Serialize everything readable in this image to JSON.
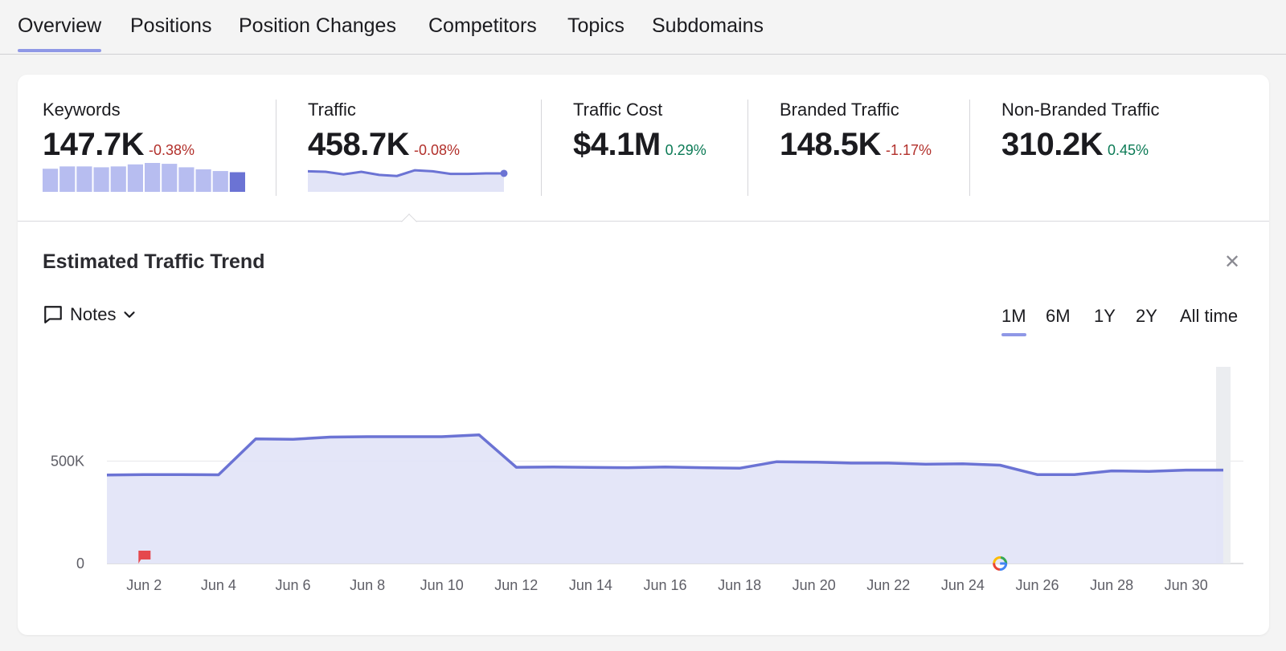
{
  "tabs": [
    {
      "label": "Overview",
      "active": true
    },
    {
      "label": "Positions"
    },
    {
      "label": "Position Changes"
    },
    {
      "label": "Competitors"
    },
    {
      "label": "Topics"
    },
    {
      "label": "Subdomains"
    }
  ],
  "metrics": {
    "keywords": {
      "label": "Keywords",
      "value": "147.7K",
      "delta": "-0.38%",
      "trend_bars": [
        0.8,
        0.88,
        0.88,
        0.85,
        0.88,
        0.95,
        1.0,
        0.97,
        0.85,
        0.78,
        0.72,
        0.68
      ]
    },
    "traffic": {
      "label": "Traffic",
      "value": "458.7K",
      "delta": "-0.08%",
      "trend_line": [
        0.8,
        0.78,
        0.68,
        0.78,
        0.66,
        0.62,
        0.84,
        0.8,
        0.7,
        0.7,
        0.72,
        0.72
      ]
    },
    "traffic_cost": {
      "label": "Traffic Cost",
      "value": "$4.1M",
      "delta": "0.29%"
    },
    "branded_traffic": {
      "label": "Branded Traffic",
      "value": "148.5K",
      "delta": "-1.17%"
    },
    "non_branded_traffic": {
      "label": "Non-Branded Traffic",
      "value": "310.2K",
      "delta": "0.45%"
    }
  },
  "trend": {
    "title": "Estimated Traffic Trend",
    "close_icon": "close-icon",
    "notes": {
      "label": "Notes",
      "icon": "comment-icon",
      "caret": "chevron-down-icon"
    },
    "ranges": [
      {
        "label": "1M",
        "active": true
      },
      {
        "label": "6M"
      },
      {
        "label": "1Y"
      },
      {
        "label": "2Y"
      },
      {
        "label": "All time"
      }
    ]
  },
  "colors": {
    "line": "#6b73d4",
    "fill": "#e2e4f7",
    "accent": "#8f98e6",
    "negative": "#b2302b",
    "positive": "#0b7a55"
  },
  "chart_data": {
    "type": "area",
    "x": [
      "Jun 1",
      "Jun 2",
      "Jun 3",
      "Jun 4",
      "Jun 5",
      "Jun 6",
      "Jun 7",
      "Jun 8",
      "Jun 9",
      "Jun 10",
      "Jun 11",
      "Jun 12",
      "Jun 13",
      "Jun 14",
      "Jun 15",
      "Jun 16",
      "Jun 17",
      "Jun 18",
      "Jun 19",
      "Jun 20",
      "Jun 21",
      "Jun 22",
      "Jun 23",
      "Jun 24",
      "Jun 25",
      "Jun 26",
      "Jun 27",
      "Jun 28",
      "Jun 29",
      "Jun 30",
      "Jul 1"
    ],
    "series": [
      {
        "values": [
          432000,
          434000,
          434000,
          433000,
          608000,
          606000,
          617000,
          619000,
          619000,
          619000,
          628000,
          470000,
          471000,
          469000,
          468000,
          471000,
          468000,
          465000,
          497000,
          495000,
          490000,
          490000,
          485000,
          487000,
          480000,
          434000,
          434000,
          452000,
          450000,
          456000,
          456000
        ]
      }
    ],
    "x_tick_labels": [
      "Jun 2",
      "Jun 4",
      "Jun 6",
      "Jun 8",
      "Jun 10",
      "Jun 12",
      "Jun 14",
      "Jun 16",
      "Jun 18",
      "Jun 20",
      "Jun 22",
      "Jun 24",
      "Jun 26",
      "Jun 28",
      "Jun 30"
    ],
    "y_tick_labels": [
      "0",
      "500K"
    ],
    "y_ticks": [
      0,
      500000
    ],
    "ylim": [
      0,
      960000
    ],
    "annotations": [
      {
        "x": "Jun 2",
        "marker": "flag-icon",
        "color": "#e5484d"
      },
      {
        "x": "Jun 25",
        "marker": "google-icon"
      }
    ],
    "grid": true
  }
}
